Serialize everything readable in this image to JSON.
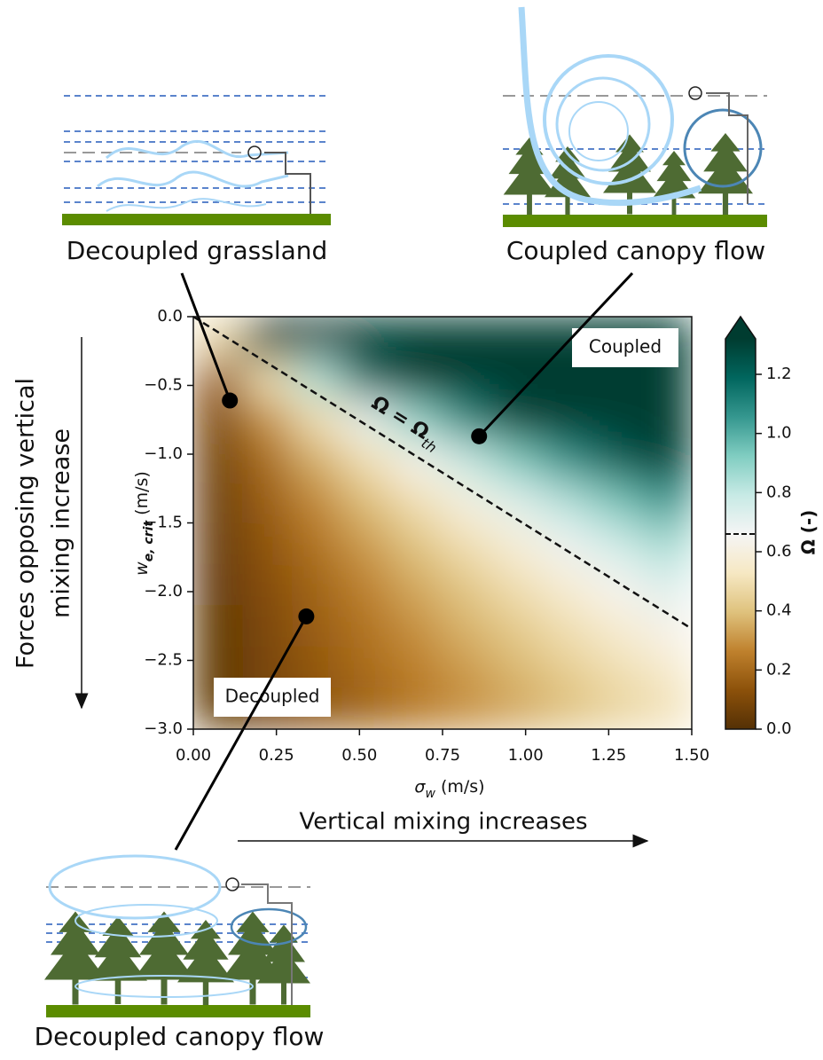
{
  "chart_data": {
    "type": "heatmap",
    "xlabel": "σ",
    "xlabel_subscript": "w",
    "xlabel_unit": " (m/s)",
    "ylabel": "w",
    "ylabel_subscript": "e, crit",
    "ylabel_unit": " (m/s)",
    "xlim": [
      0,
      1.5
    ],
    "xticks": [
      {
        "value": 0,
        "label": "0.00"
      },
      {
        "value": 0.25,
        "label": "0.25"
      },
      {
        "value": 0.5,
        "label": "0.50"
      },
      {
        "value": 0.75,
        "label": "0.75"
      },
      {
        "value": 1,
        "label": "1.00"
      },
      {
        "value": 1.25,
        "label": "1.25"
      },
      {
        "value": 1.5,
        "label": "1.50"
      }
    ],
    "ylim": [
      -3,
      0
    ],
    "yticks": [
      {
        "value": 0,
        "label": "0.0"
      },
      {
        "value": -0.5,
        "label": "−0.5"
      },
      {
        "value": -1,
        "label": "−1.0"
      },
      {
        "value": -1.5,
        "label": "−1.5"
      },
      {
        "value": -2,
        "label": "−2.0"
      },
      {
        "value": -2.5,
        "label": "−2.5"
      },
      {
        "value": -3,
        "label": "−3.0"
      }
    ],
    "x_centers": [
      0.075,
      0.225,
      0.375,
      0.525,
      0.675,
      0.825,
      0.975,
      1.125,
      1.275,
      1.425
    ],
    "y_centers": [
      -0.15,
      -0.45,
      -0.75,
      -1.05,
      -1.35,
      -1.65,
      -1.95,
      -2.25,
      -2.55,
      -2.85
    ],
    "values": [
      [
        0.5,
        1.5,
        2.5,
        3.5,
        4.5,
        5.5,
        6.5,
        7.5,
        8.5,
        9.5
      ],
      [
        0.17,
        0.5,
        0.83,
        1.17,
        1.5,
        1.83,
        2.17,
        2.5,
        2.83,
        3.17
      ],
      [
        0.1,
        0.3,
        0.5,
        0.7,
        0.9,
        1.1,
        1.3,
        1.5,
        1.7,
        1.9
      ],
      [
        0.07,
        0.21,
        0.36,
        0.5,
        0.64,
        0.79,
        0.93,
        1.07,
        1.21,
        1.36
      ],
      [
        0.06,
        0.17,
        0.28,
        0.39,
        0.5,
        0.61,
        0.72,
        0.83,
        0.94,
        1.06
      ],
      [
        0.05,
        0.14,
        0.23,
        0.32,
        0.41,
        0.5,
        0.59,
        0.68,
        0.77,
        0.86
      ],
      [
        0.04,
        0.12,
        0.19,
        0.27,
        0.35,
        0.42,
        0.5,
        0.58,
        0.65,
        0.73
      ],
      [
        0.03,
        0.1,
        0.17,
        0.23,
        0.3,
        0.37,
        0.43,
        0.5,
        0.57,
        0.63
      ],
      [
        0.03,
        0.09,
        0.15,
        0.21,
        0.26,
        0.32,
        0.38,
        0.44,
        0.5,
        0.56
      ],
      [
        0.03,
        0.08,
        0.13,
        0.18,
        0.24,
        0.29,
        0.34,
        0.39,
        0.45,
        0.5
      ]
    ],
    "colormap": [
      "#543005",
      "#8c510a",
      "#bf812d",
      "#dfc27d",
      "#f6e8c3",
      "#f5f5f5",
      "#c7eae5",
      "#80cdc1",
      "#35978f",
      "#01665e",
      "#003c30"
    ],
    "clim": [
      0,
      1.32
    ],
    "colorbar_label": "Ω (-)",
    "colorbar_ticks": [
      {
        "value": 0,
        "label": "0.0"
      },
      0.2,
      0.4,
      0.6,
      0.8,
      {
        "value": 1,
        "label": "1.0"
      },
      1.2
    ],
    "threshold": {
      "label": "Ω = Ω",
      "label_subscript": "th",
      "value": 0.66,
      "x": [
        0,
        1.5
      ],
      "y": [
        0,
        -2.27
      ]
    },
    "annotations": [
      "Coupled",
      "Decoupled"
    ],
    "points": {
      "x": [
        0.11,
        0.86,
        0.34
      ],
      "y": [
        -0.61,
        -0.87,
        -2.18
      ]
    }
  },
  "schematics": [
    {
      "title": "Decoupled grassland"
    },
    {
      "title": "Coupled canopy flow"
    },
    {
      "title": "Decoupled canopy flow"
    }
  ],
  "arrows": {
    "x": "Vertical mixing increases",
    "y": [
      "Forces opposing vertical",
      "mixing increase"
    ]
  }
}
